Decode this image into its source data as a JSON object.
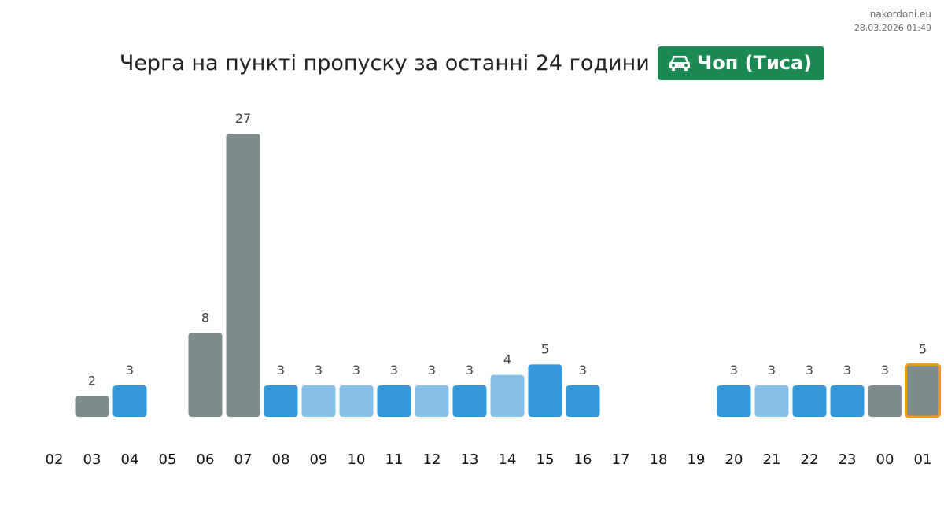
{
  "source": {
    "site": "nakordoni.eu",
    "timestamp": "28.03.2026 01:49"
  },
  "header": {
    "title": "Черга на пункті пропуску за останні 24 години",
    "checkpoint": "Чоп (Тиса)",
    "checkpoint_icon": "car-icon",
    "badge_color": "#1a8a52"
  },
  "chart_data": {
    "type": "bar",
    "title": "",
    "xlabel": "",
    "ylabel": "",
    "ylim": [
      0,
      27
    ],
    "grid": false,
    "legend": "none",
    "categories": [
      "02",
      "03",
      "04",
      "05",
      "06",
      "07",
      "08",
      "09",
      "10",
      "11",
      "12",
      "13",
      "14",
      "15",
      "16",
      "17",
      "18",
      "19",
      "20",
      "21",
      "22",
      "23",
      "00",
      "01"
    ],
    "values": [
      null,
      2,
      3,
      null,
      8,
      27,
      3,
      3,
      3,
      3,
      3,
      3,
      4,
      5,
      3,
      null,
      null,
      null,
      3,
      3,
      3,
      3,
      3,
      5
    ],
    "colors": [
      "",
      "#7f8c8d",
      "#3498db",
      "",
      "#7f8c8d",
      "#7f8c8d",
      "#3498db",
      "#85c1e9",
      "#85c1e9",
      "#3498db",
      "#85c1e9",
      "#3498db",
      "#85c1e9",
      "#3498db",
      "#3498db",
      "",
      "",
      "",
      "#3498db",
      "#85c1e9",
      "#3498db",
      "#3498db",
      "#7f8c8d",
      "#7f8c8d"
    ],
    "highlight_index": 23,
    "highlight_color": "#f39c12"
  }
}
